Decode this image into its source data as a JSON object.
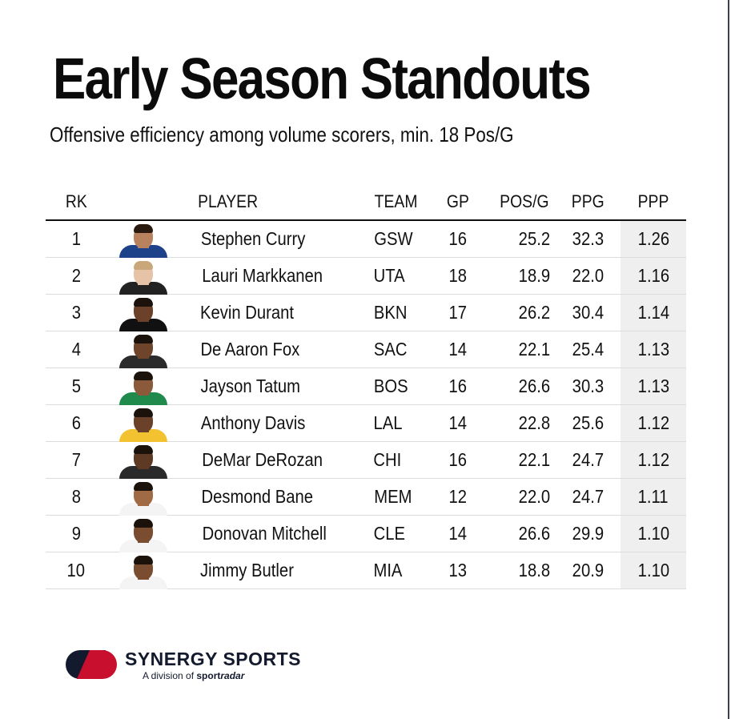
{
  "title": "Early Season Standouts",
  "subtitle": "Offensive efficiency among volume scorers, min. 18 Pos/G",
  "columns": {
    "rank": "RK",
    "player": "PLAYER",
    "team": "TEAM",
    "gp": "GP",
    "pos_g": "POS/G",
    "ppg": "PPG",
    "ppp": "PPP"
  },
  "rows": [
    {
      "rank": "1",
      "player": "Stephen Curry",
      "team": "GSW",
      "gp": "16",
      "pos_g": "25.2",
      "ppg": "32.3",
      "ppp": "1.26",
      "jersey_color": "#1d428a",
      "skin": "#b9825e",
      "hair": "#2a1a10"
    },
    {
      "rank": "2",
      "player": "Lauri Markkanen",
      "team": "UTA",
      "gp": "18",
      "pos_g": "18.9",
      "ppg": "22.0",
      "ppp": "1.16",
      "jersey_color": "#222222",
      "skin": "#e6c2a6",
      "hair": "#c9a77a"
    },
    {
      "rank": "3",
      "player": "Kevin Durant",
      "team": "BKN",
      "gp": "17",
      "pos_g": "26.2",
      "ppg": "30.4",
      "ppp": "1.14",
      "jersey_color": "#111111",
      "skin": "#6b4229",
      "hair": "#1b120c"
    },
    {
      "rank": "4",
      "player": "De Aaron Fox",
      "team": "SAC",
      "gp": "14",
      "pos_g": "22.1",
      "ppg": "25.4",
      "ppp": "1.13",
      "jersey_color": "#2b2b2b",
      "skin": "#6e442b",
      "hair": "#1b120c"
    },
    {
      "rank": "5",
      "player": "Jayson Tatum",
      "team": "BOS",
      "gp": "16",
      "pos_g": "26.6",
      "ppg": "30.3",
      "ppp": "1.13",
      "jersey_color": "#1f8a4c",
      "skin": "#8a5a3a",
      "hair": "#1b120c"
    },
    {
      "rank": "6",
      "player": "Anthony Davis",
      "team": "LAL",
      "gp": "14",
      "pos_g": "22.8",
      "ppg": "25.6",
      "ppp": "1.12",
      "jersey_color": "#f2c230",
      "skin": "#6b4229",
      "hair": "#1b120c"
    },
    {
      "rank": "7",
      "player": "DeMar DeRozan",
      "team": "CHI",
      "gp": "16",
      "pos_g": "22.1",
      "ppg": "24.7",
      "ppp": "1.12",
      "jersey_color": "#2a2a2a",
      "skin": "#5e3a24",
      "hair": "#1b120c"
    },
    {
      "rank": "8",
      "player": "Desmond Bane",
      "team": "MEM",
      "gp": "12",
      "pos_g": "22.0",
      "ppg": "24.7",
      "ppp": "1.11",
      "jersey_color": "#f4f4f4",
      "skin": "#a06a45",
      "hair": "#1b120c"
    },
    {
      "rank": "9",
      "player": "Donovan Mitchell",
      "team": "CLE",
      "gp": "14",
      "pos_g": "26.6",
      "ppg": "29.9",
      "ppp": "1.10",
      "jersey_color": "#f4f4f4",
      "skin": "#7a4c30",
      "hair": "#1b120c"
    },
    {
      "rank": "10",
      "player": "Jimmy Butler",
      "team": "MIA",
      "gp": "13",
      "pos_g": "18.8",
      "ppg": "20.9",
      "ppp": "1.10",
      "jersey_color": "#f4f4f4",
      "skin": "#7a4c30",
      "hair": "#1b120c"
    }
  ],
  "logo": {
    "name": "SYNERGY SPORTS",
    "tagline_prefix": "A division of ",
    "tagline_brand_a": "sport",
    "tagline_brand_b": "radar",
    "mark_colors": [
      "#c8102e",
      "#141a2e"
    ]
  }
}
